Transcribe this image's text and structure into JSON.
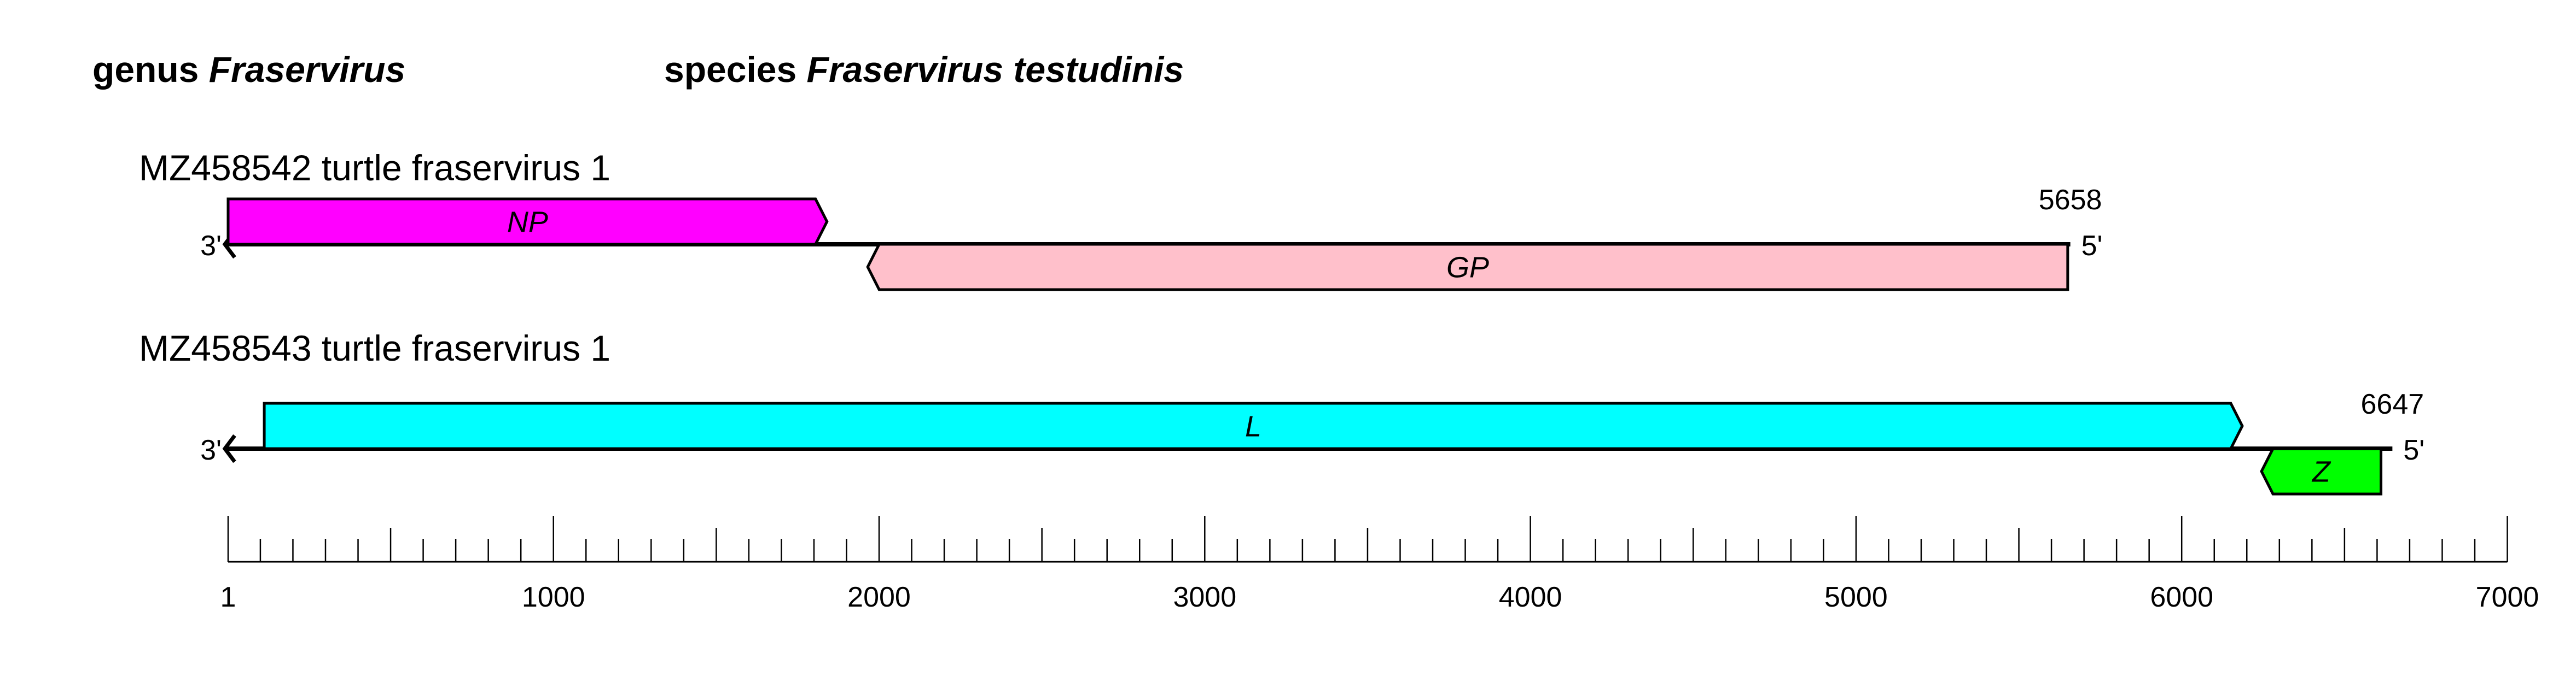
{
  "header": {
    "genus_prefix": "genus",
    "genus_name": "Fraservirus",
    "species_prefix": "species",
    "species_name": "Fraservirus testudinis"
  },
  "sequences": [
    {
      "title": "MZ458542 turtle fraservirus 1",
      "length": 5658,
      "length_label": "5658",
      "end_left": "3'",
      "end_right": "5'",
      "genes": [
        {
          "name": "NP",
          "start": 1,
          "end": 1840,
          "strand": "top",
          "direction": "right",
          "color": "#ff00ff"
        },
        {
          "name": "GP",
          "start": 1965,
          "end": 5650,
          "strand": "bottom",
          "direction": "left",
          "color": "#ffc0cb"
        }
      ]
    },
    {
      "title": "MZ458543 turtle fraservirus 1",
      "length": 6647,
      "length_label": "6647",
      "end_left": "3'",
      "end_right": "5'",
      "genes": [
        {
          "name": "L",
          "start": 112,
          "end": 6186,
          "strand": "top",
          "direction": "right",
          "color": "#00ffff"
        },
        {
          "name": "Z",
          "start": 6245,
          "end": 6612,
          "strand": "bottom",
          "direction": "left",
          "color": "#00ff00"
        }
      ]
    }
  ],
  "ruler": {
    "min": 1,
    "max": 7000,
    "major_step": 1000,
    "mid_step": 500,
    "minor_step": 100,
    "labels": [
      "1",
      "1000",
      "2000",
      "3000",
      "4000",
      "5000",
      "6000",
      "7000"
    ]
  }
}
